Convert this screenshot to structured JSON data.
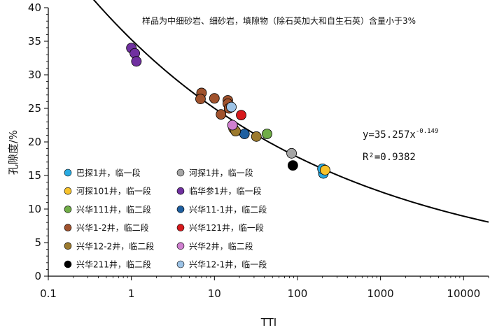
{
  "chart_data": {
    "type": "scatter",
    "title": "样品为中细砂岩、细砂岩，填隙物（除石英加大和自生石英）含量小于3%",
    "xlabel": "TTI",
    "ylabel": "孔隙度/%",
    "x_scale": "log",
    "xlim": [
      0.1,
      20000
    ],
    "ylim": [
      0,
      40
    ],
    "x_ticks": [
      0.1,
      1,
      10,
      100,
      1000,
      10000
    ],
    "x_tick_labels": [
      "0.1",
      "1",
      "10",
      "100",
      "1000",
      "10000"
    ],
    "y_ticks": [
      0,
      5,
      10,
      15,
      20,
      25,
      30,
      35,
      40
    ],
    "y_tick_labels": [
      "0",
      "5",
      "10",
      "15",
      "20",
      "25",
      "30",
      "35",
      "40"
    ],
    "grid": false,
    "legend_position": "bottom-left",
    "fit": {
      "equation": "y=35.257x",
      "exponent": "-0.149",
      "r2_text": "R²=0.9382",
      "a": 35.257,
      "b": -0.149,
      "x_range": [
        0.33,
        20000
      ]
    },
    "series": [
      {
        "name": "巴探1井，临一段",
        "color": "#29abe2",
        "points": [
          [
            205,
            15.3
          ],
          [
            200,
            16.0
          ]
        ]
      },
      {
        "name": "河探1井，临一段",
        "color": "#a6a6a6",
        "points": [
          [
            85,
            18.3
          ]
        ]
      },
      {
        "name": "河探101井，临一段",
        "color": "#f7c22b",
        "points": [
          [
            215,
            15.8
          ]
        ]
      },
      {
        "name": "临华参1井，临一段",
        "color": "#7030a0",
        "points": [
          [
            1.0,
            34.0
          ],
          [
            1.1,
            33.2
          ],
          [
            1.15,
            32.0
          ]
        ]
      },
      {
        "name": "兴华111井，临二段",
        "color": "#70ad47",
        "points": [
          [
            43,
            21.2
          ]
        ]
      },
      {
        "name": "兴华11-1井，临二段",
        "color": "#1f5fa0",
        "points": [
          [
            23,
            21.2
          ]
        ]
      },
      {
        "name": "兴华1-2井，临二段",
        "color": "#a0522d",
        "points": [
          [
            7,
            27.3
          ],
          [
            6.8,
            26.4
          ],
          [
            10,
            26.5
          ],
          [
            14.5,
            26.2
          ],
          [
            14.5,
            25.7
          ],
          [
            15,
            25.0
          ],
          [
            12,
            24.1
          ]
        ]
      },
      {
        "name": "兴华121井，临一段",
        "color": "#d7191c",
        "points": [
          [
            21,
            24.0
          ]
        ]
      },
      {
        "name": "兴华12-2井，临二段",
        "color": "#9c7a2e",
        "points": [
          [
            17,
            22.0
          ],
          [
            18,
            21.6
          ],
          [
            32,
            20.8
          ]
        ]
      },
      {
        "name": "兴华2井，临二段",
        "color": "#d080d0",
        "points": [
          [
            16.5,
            22.5
          ]
        ]
      },
      {
        "name": "兴华211井，临二段",
        "color": "#000000",
        "points": [
          [
            88,
            16.5
          ]
        ]
      },
      {
        "name": "兴华12-1井，临一段",
        "color": "#9dc3e6",
        "points": [
          [
            16,
            25.2
          ]
        ]
      }
    ]
  }
}
